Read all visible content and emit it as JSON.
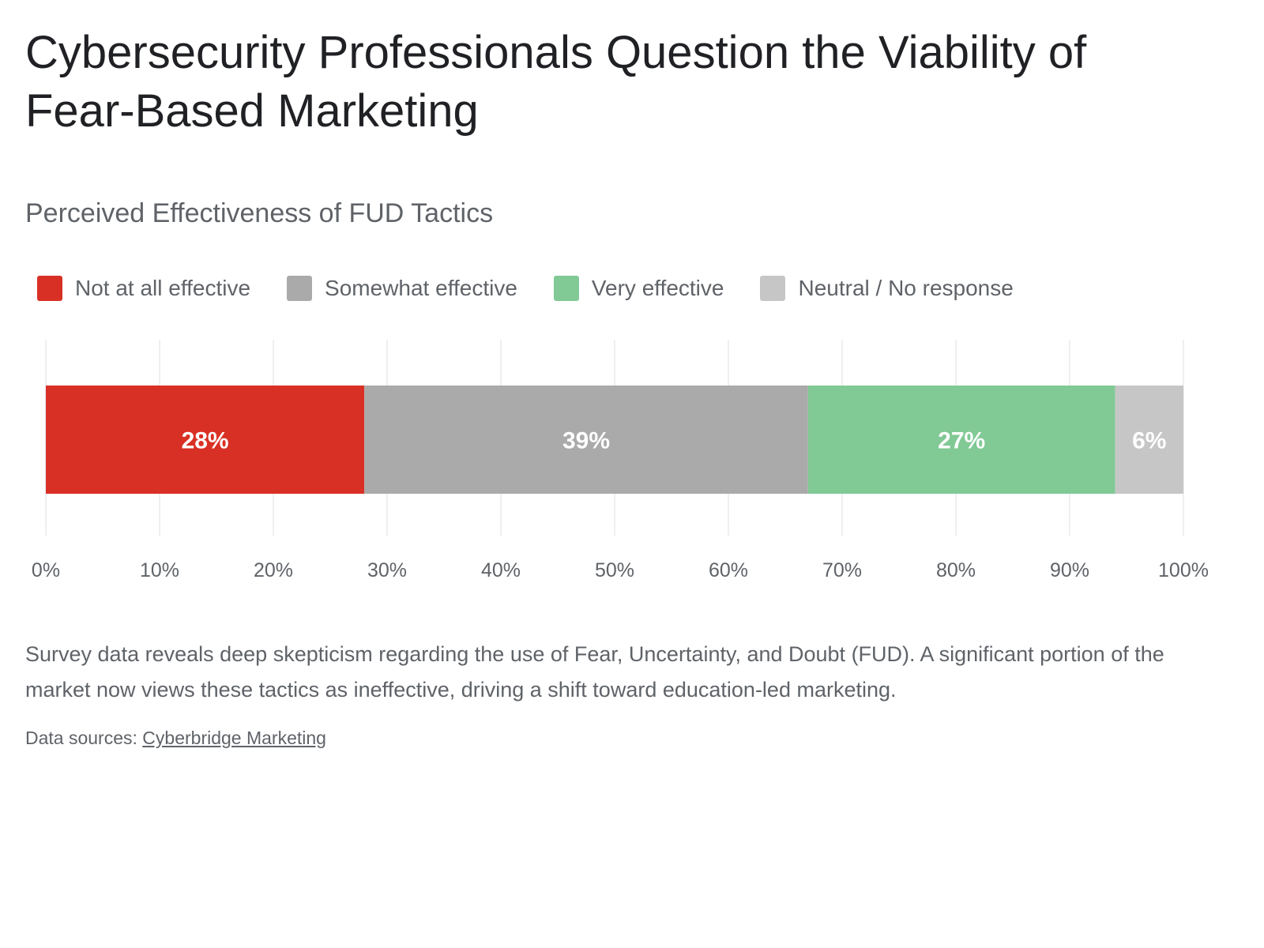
{
  "title": "Cybersecurity Professionals Question the Viability of Fear-Based Marketing",
  "subtitle": "Perceived Effectiveness of FUD Tactics",
  "summary": "Survey data reveals deep skepticism regarding the use of Fear, Uncertainty, and Doubt (FUD). A significant portion of the market now views these tactics as ineffective, driving a shift toward education-led marketing.",
  "sources": {
    "prefix": "Data sources:",
    "link_text": "Cyberbridge Marketing"
  },
  "chart_data": {
    "type": "bar",
    "orientation": "horizontal",
    "stacked": true,
    "title": "Perceived Effectiveness of FUD Tactics",
    "xlim": [
      0,
      100
    ],
    "x_ticks": [
      "0%",
      "10%",
      "20%",
      "30%",
      "40%",
      "50%",
      "60%",
      "70%",
      "80%",
      "90%",
      "100%"
    ],
    "x_tick_values": [
      0,
      10,
      20,
      30,
      40,
      50,
      60,
      70,
      80,
      90,
      100
    ],
    "grid": true,
    "legend_position": "top-left",
    "series": [
      {
        "name": "Not at all effective",
        "value": 28,
        "label": "28%",
        "color": "#d93025"
      },
      {
        "name": "Somewhat effective",
        "value": 39,
        "label": "39%",
        "color": "#aaaaaa"
      },
      {
        "name": "Very effective",
        "value": 27,
        "label": "27%",
        "color": "#81c995"
      },
      {
        "name": "Neutral / No response",
        "value": 6,
        "label": "6%",
        "color": "#c6c6c6"
      }
    ],
    "gridline_color": "#e8eaed",
    "tick_label_color": "#5f6368",
    "data_label_color": "#ffffff"
  }
}
